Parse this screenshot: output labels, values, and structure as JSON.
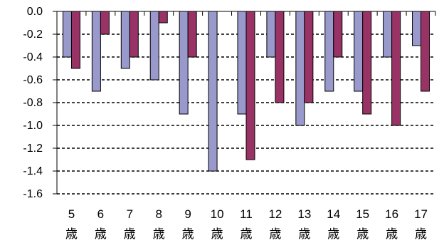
{
  "chart_data": {
    "type": "bar",
    "categories": [
      "5",
      "6",
      "7",
      "8",
      "9",
      "10",
      "11",
      "12",
      "13",
      "14",
      "15",
      "16",
      "17"
    ],
    "category_unit": "歳",
    "series": [
      {
        "values": [
          -0.4,
          -0.7,
          -0.5,
          -0.6,
          -0.9,
          -1.4,
          -0.9,
          -0.4,
          -1.0,
          -0.7,
          -0.7,
          -0.4,
          -0.3
        ],
        "color": "#9999cc"
      },
      {
        "values": [
          -0.5,
          -0.2,
          -0.4,
          -0.1,
          -0.4,
          0.0,
          -1.3,
          -0.8,
          -0.8,
          -0.4,
          -0.9,
          -1.0,
          -0.7
        ],
        "color": "#993366"
      }
    ],
    "yticks": [
      "0.0",
      "-0.2",
      "-0.4",
      "-0.6",
      "-0.8",
      "-1.0",
      "-1.2",
      "-1.4",
      "-1.6"
    ],
    "ylim": [
      -1.6,
      0.0
    ],
    "grid": true,
    "grid_style": "dashed",
    "legend": "none"
  }
}
